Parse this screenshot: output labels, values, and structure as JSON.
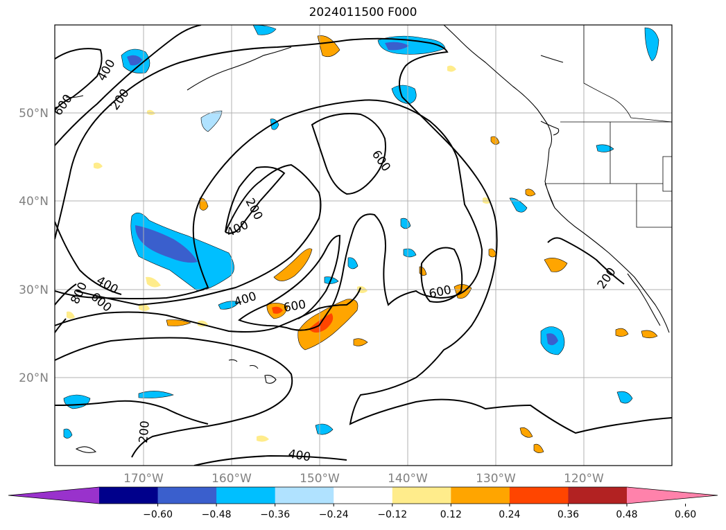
{
  "title": "2024011500 F000",
  "map": {
    "lon_range": [
      -180,
      -110
    ],
    "lat_range": [
      10,
      60
    ],
    "lat_ticks": [
      {
        "value": 20,
        "label": "20°N"
      },
      {
        "value": 30,
        "label": "30°N"
      },
      {
        "value": 40,
        "label": "40°N"
      },
      {
        "value": 50,
        "label": "50°N"
      }
    ],
    "lon_ticks": [
      {
        "value": -170,
        "label": "170°W"
      },
      {
        "value": -160,
        "label": "160°W"
      },
      {
        "value": -150,
        "label": "150°W"
      },
      {
        "value": -140,
        "label": "140°W"
      },
      {
        "value": -130,
        "label": "130°W"
      },
      {
        "value": -120,
        "label": "120°W"
      }
    ],
    "grid": true
  },
  "colorbar": {
    "colors": [
      "#9932cc",
      "#00008b",
      "#3a5fcd",
      "#00bfff",
      "#b0e2ff",
      "#ffffff",
      "#ffec8b",
      "#ffa500",
      "#ff4500",
      "#b22222",
      "#ff82ab"
    ],
    "tick_labels": [
      "−0.60",
      "−0.48",
      "−0.36",
      "−0.24",
      "−0.12",
      "0.12",
      "0.24",
      "0.36",
      "0.48",
      "0.60"
    ]
  },
  "contour_labels": [
    "400",
    "200",
    "600",
    "600",
    "200",
    "400",
    "400",
    "600",
    "800",
    "400",
    "600",
    "600",
    "200",
    "200",
    "400"
  ]
}
